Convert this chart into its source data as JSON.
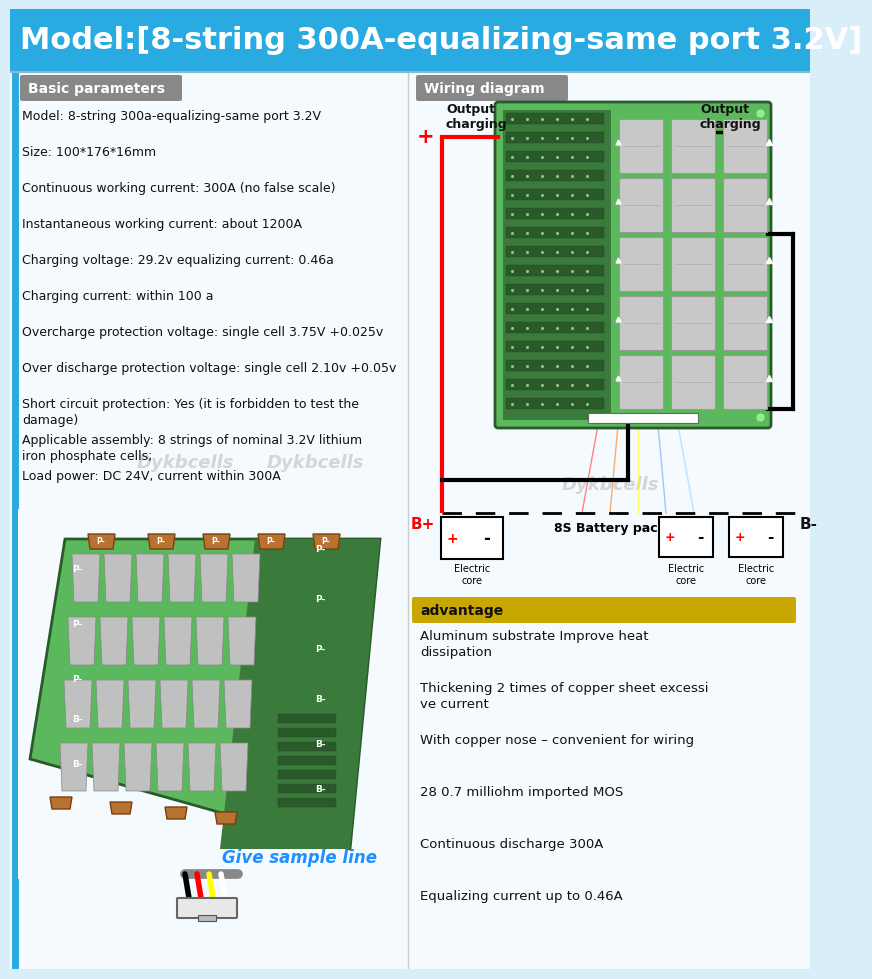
{
  "title": "Model:[8-string 300A-equalizing-same port 3.2V]",
  "title_bg": "#29ABE2",
  "title_color": "#FFFFFF",
  "title_fontsize": 22,
  "bg_color": "#D8EEF8",
  "panel_bg": "#F0F8FF",
  "section_header_bg": "#888888",
  "section_header_color": "#FFFFFF",
  "section_header_fontsize": 10,
  "basic_params_title": "Basic parameters",
  "wiring_title": "Wiring diagram",
  "advantage_title": "advantage",
  "advantage_bg": "#C8A800",
  "params": [
    "Model: 8-string 300a-equalizing-same port 3.2V",
    "Size: 100*176*16mm",
    "Continuous working current: 300A (no false scale)",
    "Instantaneous working current: about 1200A",
    "Charging voltage: 29.2v equalizing current: 0.46a",
    "Charging current: within 100 a",
    "Overcharge protection voltage: single cell 3.75V +0.025v",
    "Over discharge protection voltage: single cell 2.10v +0.05v",
    "Short circuit protection: Yes (it is forbidden to test the\ndamage)",
    "Applicable assembly: 8 strings of nominal 3.2V lithium\niron phosphate cells;",
    "Load power: DC 24V, current within 300A"
  ],
  "advantages": [
    "Aluminum substrate Improve heat\ndissipation",
    "Thickening 2 times of copper sheet excessi\nve current",
    "With copper nose – convenient for wiring",
    "28 0.7 milliohm imported MOS",
    "Continuous discharge 300A",
    "Equalizing current up to 0.46A"
  ],
  "text_color": "#111111",
  "param_fontsize": 9,
  "adv_fontsize": 9.5,
  "watermark": "Dykbcells",
  "give_sample": "Give sample line",
  "give_sample_color": "#1E90FF",
  "pcb_green": "#5CB85C",
  "pcb_dark_green": "#3A7A3A",
  "pcb_border": "#2A5A2A",
  "mosfet_color": "#C8C8C8",
  "mosfet_border": "#999999",
  "copper_color": "#B87333",
  "wire_red": "#FF0000",
  "wire_black": "#111111"
}
